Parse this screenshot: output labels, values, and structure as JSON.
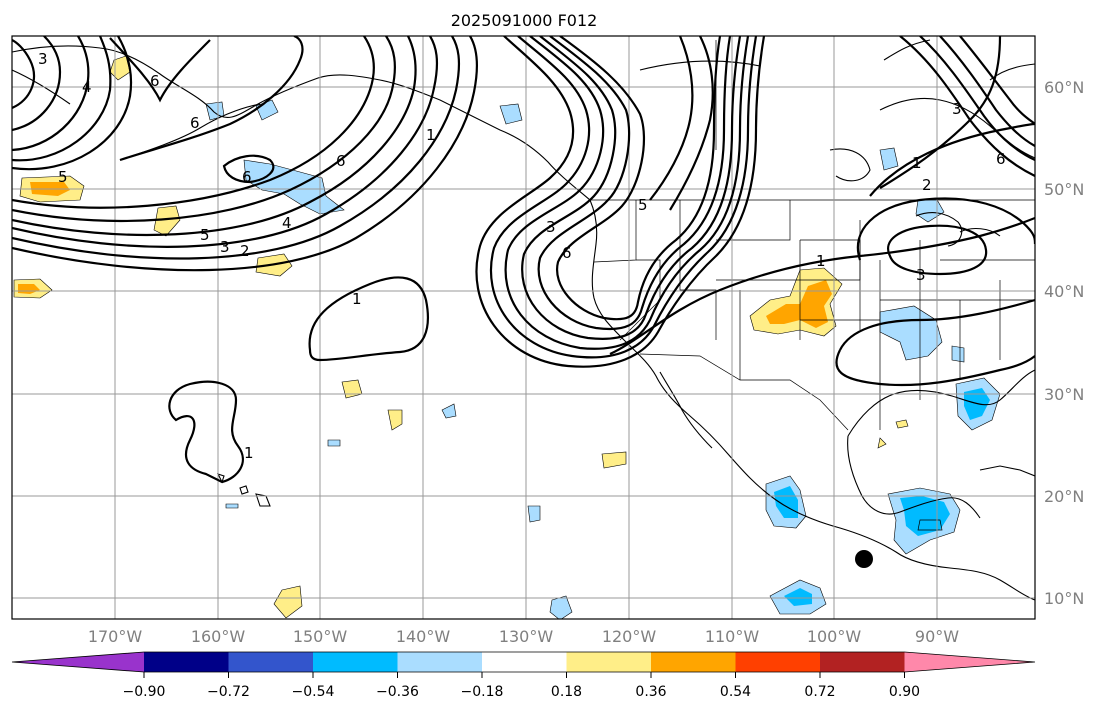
{
  "title": "2025091000 F012",
  "longitude_labels": [
    "170°W",
    "160°W",
    "150°W",
    "140°W",
    "130°W",
    "120°W",
    "110°W",
    "100°W",
    "90°W"
  ],
  "latitude_labels": [
    "60°N",
    "50°N",
    "40°N",
    "30°N",
    "20°N",
    "10°N"
  ],
  "colorbar": {
    "tick_labels": [
      "−0.90",
      "−0.72",
      "−0.54",
      "−0.36",
      "−0.18",
      "0.18",
      "0.36",
      "0.54",
      "0.72",
      "0.90"
    ],
    "colors": [
      "#9933cc",
      "#000088",
      "#3355cc",
      "#00bbff",
      "#aaddff",
      "#ffffff",
      "#ffee88",
      "#ffa500",
      "#ff4000",
      "#b22222",
      "#ff88aa"
    ]
  },
  "contour_labels": [
    {
      "id": "contour-label-3-nw",
      "text": "3"
    },
    {
      "id": "contour-label-4-nw",
      "text": "4"
    },
    {
      "id": "contour-label-6-nw",
      "text": "6"
    },
    {
      "id": "contour-label-6-pac",
      "text": "6"
    },
    {
      "id": "contour-label-6-aleut",
      "text": "6"
    },
    {
      "id": "contour-label-5-w",
      "text": "5"
    },
    {
      "id": "contour-label-4-c",
      "text": "4"
    },
    {
      "id": "contour-label-5-c",
      "text": "5"
    },
    {
      "id": "contour-label-3-c",
      "text": "3"
    },
    {
      "id": "contour-label-2-c",
      "text": "2"
    },
    {
      "id": "contour-label-1-gulf",
      "text": "1"
    },
    {
      "id": "contour-label-1-pac",
      "text": "1"
    },
    {
      "id": "contour-label-1-hi",
      "text": "1"
    },
    {
      "id": "contour-label-6-bc",
      "text": "6"
    },
    {
      "id": "contour-label-6-ca",
      "text": "6"
    },
    {
      "id": "contour-label-3-ca",
      "text": "3"
    },
    {
      "id": "contour-label-5-or",
      "text": "5"
    },
    {
      "id": "contour-label-1-plains",
      "text": "1"
    },
    {
      "id": "contour-label-1-hud",
      "text": "1"
    },
    {
      "id": "contour-label-2-hud",
      "text": "2"
    },
    {
      "id": "contour-label-3-gl",
      "text": "3"
    },
    {
      "id": "contour-label-3-ne",
      "text": "3"
    },
    {
      "id": "contour-label-6-ne",
      "text": "6"
    }
  ]
}
